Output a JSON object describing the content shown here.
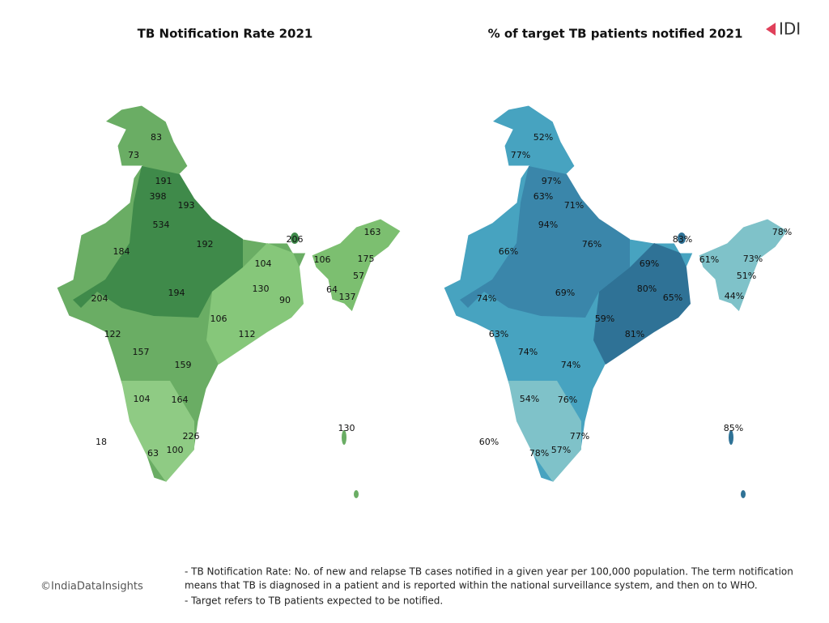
{
  "left_map": {
    "title": "TB Notification Rate 2021",
    "labels": [
      83,
      73,
      191,
      398,
      193,
      534,
      192,
      184,
      206,
      163,
      104,
      106,
      175,
      57,
      130,
      90,
      64,
      137,
      204,
      194,
      106,
      112,
      122,
      157,
      159,
      104,
      164,
      130,
      226,
      18,
      100,
      63
    ]
  },
  "right_map": {
    "title": "% of target TB patients notified 2021",
    "labels": [
      "52%",
      "77%",
      "97%",
      "63%",
      "71%",
      "94%",
      "76%",
      "66%",
      "83%",
      "78%",
      "69%",
      "61%",
      "73%",
      "51%",
      "80%",
      "65%",
      "44%",
      "74%",
      "69%",
      "59%",
      "81%",
      "63%",
      "74%",
      "74%",
      "54%",
      "76%",
      "85%",
      "77%",
      "60%",
      "57%",
      "78%"
    ]
  },
  "logo": "IDI",
  "credit": "©IndiaDataInsights",
  "notes": [
    "- TB Notification Rate: No. of new and relapse TB cases notified in a given year per 100,000 population. The term notification",
    "means that TB is diagnosed in a patient and is reported within the national surveillance system, and then on to WHO.",
    "- Target refers to TB patients expected to be notified."
  ]
}
